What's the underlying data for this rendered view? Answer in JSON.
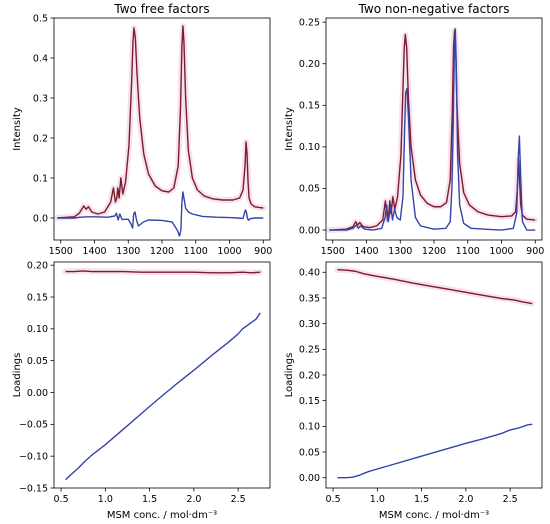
{
  "chart_data": [
    {
      "type": "line",
      "title": "Two free factors",
      "xlabel": "",
      "ylabel": "Intensity",
      "xlim": [
        1520,
        880
      ],
      "ylim": [
        -0.055,
        0.5
      ],
      "xticks": [
        1500,
        1400,
        1300,
        1200,
        1100,
        1000,
        900
      ],
      "yticks": [
        0.0,
        0.1,
        0.2,
        0.3,
        0.4,
        0.5
      ],
      "ytick_decimals": 1,
      "series": [
        {
          "color": "#7b1c2a",
          "x": [
            1510,
            1460,
            1445,
            1432,
            1425,
            1418,
            1408,
            1390,
            1370,
            1352,
            1344,
            1338,
            1334,
            1331,
            1327,
            1322,
            1316,
            1308,
            1298,
            1290,
            1286,
            1283,
            1279,
            1274,
            1266,
            1254,
            1240,
            1220,
            1200,
            1180,
            1165,
            1152,
            1145,
            1141,
            1138,
            1135,
            1130,
            1122,
            1110,
            1095,
            1075,
            1050,
            1020,
            990,
            970,
            960,
            954,
            951,
            948,
            945,
            942,
            936,
            925,
            910,
            900
          ],
          "y": [
            0.0,
            0.003,
            0.012,
            0.03,
            0.022,
            0.028,
            0.015,
            0.01,
            0.015,
            0.04,
            0.075,
            0.04,
            0.05,
            0.075,
            0.05,
            0.1,
            0.06,
            0.09,
            0.18,
            0.34,
            0.44,
            0.475,
            0.45,
            0.36,
            0.25,
            0.16,
            0.11,
            0.08,
            0.068,
            0.065,
            0.075,
            0.13,
            0.28,
            0.43,
            0.48,
            0.44,
            0.3,
            0.17,
            0.1,
            0.07,
            0.055,
            0.048,
            0.045,
            0.045,
            0.05,
            0.07,
            0.13,
            0.19,
            0.16,
            0.09,
            0.05,
            0.035,
            0.028,
            0.026,
            0.025
          ]
        },
        {
          "color": "#3344aa",
          "x": [
            1510,
            1460,
            1440,
            1420,
            1400,
            1360,
            1340,
            1335,
            1330,
            1325,
            1318,
            1300,
            1292,
            1287,
            1284,
            1280,
            1276,
            1270,
            1255,
            1240,
            1200,
            1170,
            1155,
            1148,
            1144,
            1141,
            1138,
            1135,
            1130,
            1122,
            1110,
            1080,
            1040,
            1000,
            975,
            960,
            953,
            950,
            947,
            944,
            940,
            925,
            900
          ],
          "y": [
            0.0,
            0.0,
            0.002,
            0.003,
            0.003,
            0.002,
            0.005,
            0.012,
            -0.005,
            0.01,
            -0.004,
            -0.003,
            -0.015,
            -0.025,
            0.01,
            0.015,
            -0.003,
            -0.02,
            -0.01,
            -0.005,
            -0.006,
            -0.01,
            -0.03,
            -0.045,
            -0.03,
            0.04,
            0.065,
            0.05,
            0.025,
            0.015,
            0.01,
            0.004,
            0.002,
            0.001,
            0.0,
            -0.001,
            0.02,
            0.015,
            0.0,
            -0.006,
            -0.002,
            0.0,
            0.0
          ]
        }
      ]
    },
    {
      "type": "line",
      "title": "Two non-negative factors",
      "xlabel": "",
      "ylabel": "Intensity",
      "xlim": [
        1520,
        880
      ],
      "ylim": [
        -0.012,
        0.255
      ],
      "xticks": [
        1500,
        1400,
        1300,
        1200,
        1100,
        1000,
        900
      ],
      "yticks": [
        0.0,
        0.05,
        0.1,
        0.15,
        0.2,
        0.25
      ],
      "ytick_decimals": 2,
      "series": [
        {
          "color": "#7b1c2a",
          "x": [
            1510,
            1460,
            1440,
            1432,
            1426,
            1420,
            1410,
            1390,
            1370,
            1352,
            1344,
            1338,
            1334,
            1331,
            1327,
            1322,
            1316,
            1308,
            1298,
            1292,
            1288,
            1285,
            1281,
            1276,
            1268,
            1255,
            1240,
            1220,
            1200,
            1180,
            1163,
            1152,
            1146,
            1142,
            1139,
            1136,
            1132,
            1124,
            1112,
            1095,
            1070,
            1040,
            1000,
            970,
            958,
            953,
            950,
            947,
            943,
            938,
            925,
            900
          ],
          "y": [
            0.0,
            0.001,
            0.004,
            0.01,
            0.006,
            0.009,
            0.004,
            0.003,
            0.005,
            0.012,
            0.035,
            0.012,
            0.02,
            0.035,
            0.02,
            0.04,
            0.025,
            0.04,
            0.09,
            0.17,
            0.22,
            0.235,
            0.22,
            0.16,
            0.1,
            0.06,
            0.042,
            0.032,
            0.028,
            0.028,
            0.033,
            0.06,
            0.14,
            0.22,
            0.24,
            0.22,
            0.15,
            0.08,
            0.045,
            0.03,
            0.022,
            0.018,
            0.016,
            0.017,
            0.022,
            0.05,
            0.085,
            0.065,
            0.03,
            0.018,
            0.013,
            0.012
          ]
        },
        {
          "color": "#3344aa",
          "x": [
            1510,
            1460,
            1440,
            1430,
            1424,
            1418,
            1405,
            1380,
            1355,
            1345,
            1340,
            1336,
            1332,
            1328,
            1323,
            1317,
            1310,
            1300,
            1292,
            1287,
            1284,
            1280,
            1275,
            1268,
            1255,
            1240,
            1200,
            1165,
            1152,
            1147,
            1143,
            1140,
            1137,
            1134,
            1130,
            1124,
            1112,
            1090,
            1050,
            1000,
            965,
            955,
            950,
            947,
            943,
            938,
            925,
            900
          ],
          "y": [
            0.0,
            0.0,
            0.002,
            0.006,
            0.002,
            0.005,
            0.001,
            0.0,
            0.002,
            0.015,
            0.03,
            0.01,
            0.018,
            0.03,
            0.012,
            0.025,
            0.015,
            0.012,
            0.04,
            0.12,
            0.165,
            0.17,
            0.13,
            0.06,
            0.015,
            0.005,
            0.001,
            0.002,
            0.01,
            0.05,
            0.13,
            0.21,
            0.242,
            0.2,
            0.09,
            0.03,
            0.008,
            0.002,
            0.001,
            0.0,
            0.002,
            0.02,
            0.09,
            0.113,
            0.06,
            0.01,
            0.0,
            0.0
          ]
        }
      ]
    },
    {
      "type": "line",
      "title": "",
      "xlabel": "MSM conc. / mol·dm⁻³",
      "ylabel": "Loadings",
      "xlim": [
        0.42,
        2.86
      ],
      "ylim": [
        -0.15,
        0.205
      ],
      "xticks": [
        0.5,
        1.0,
        1.5,
        2.0,
        2.5
      ],
      "yticks": [
        -0.15,
        -0.1,
        -0.05,
        0.0,
        0.05,
        0.1,
        0.15,
        0.2
      ],
      "ytick_decimals": 2,
      "series": [
        {
          "color": "#7b1c2a",
          "x": [
            0.55,
            0.65,
            0.75,
            0.85,
            1.0,
            1.2,
            1.4,
            1.6,
            1.8,
            2.0,
            2.2,
            2.4,
            2.55,
            2.65,
            2.75
          ],
          "y": [
            0.19,
            0.19,
            0.191,
            0.19,
            0.19,
            0.19,
            0.189,
            0.189,
            0.189,
            0.189,
            0.188,
            0.188,
            0.189,
            0.188,
            0.189
          ]
        },
        {
          "color": "#3344aa",
          "x": [
            0.55,
            0.62,
            0.7,
            0.77,
            0.85,
            1.0,
            1.2,
            1.4,
            1.6,
            1.8,
            2.0,
            2.2,
            2.4,
            2.5,
            2.55,
            2.6,
            2.7,
            2.75
          ],
          "y": [
            -0.137,
            -0.128,
            -0.118,
            -0.108,
            -0.098,
            -0.082,
            -0.058,
            -0.034,
            -0.01,
            0.013,
            0.035,
            0.058,
            0.08,
            0.092,
            0.1,
            0.105,
            0.115,
            0.125
          ]
        }
      ]
    },
    {
      "type": "line",
      "title": "",
      "xlabel": "MSM conc. / mol·dm⁻³",
      "ylabel": "Loadings",
      "xlim": [
        0.42,
        2.86
      ],
      "ylim": [
        -0.02,
        0.42
      ],
      "xticks": [
        0.5,
        1.0,
        1.5,
        2.0,
        2.5
      ],
      "yticks": [
        0.0,
        0.05,
        0.1,
        0.15,
        0.2,
        0.25,
        0.3,
        0.35,
        0.4
      ],
      "ytick_decimals": 2,
      "series": [
        {
          "color": "#7b1c2a",
          "x": [
            0.55,
            0.65,
            0.75,
            0.85,
            1.0,
            1.2,
            1.4,
            1.6,
            1.8,
            2.0,
            2.2,
            2.4,
            2.55,
            2.65,
            2.75
          ],
          "y": [
            0.405,
            0.404,
            0.402,
            0.397,
            0.392,
            0.386,
            0.379,
            0.373,
            0.367,
            0.361,
            0.355,
            0.349,
            0.346,
            0.342,
            0.339
          ]
        },
        {
          "color": "#3344aa",
          "x": [
            0.55,
            0.65,
            0.72,
            0.8,
            0.9,
            1.0,
            1.2,
            1.4,
            1.6,
            1.8,
            2.0,
            2.2,
            2.4,
            2.5,
            2.6,
            2.7,
            2.75
          ],
          "y": [
            0.0,
            0.0,
            0.001,
            0.005,
            0.012,
            0.017,
            0.027,
            0.037,
            0.047,
            0.057,
            0.067,
            0.076,
            0.086,
            0.093,
            0.097,
            0.103,
            0.104
          ]
        }
      ]
    }
  ]
}
